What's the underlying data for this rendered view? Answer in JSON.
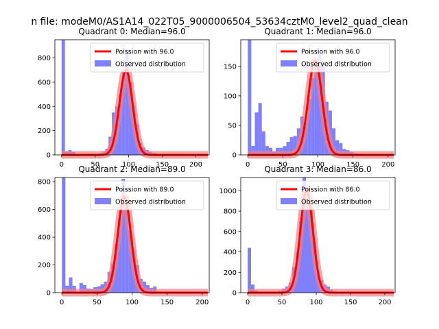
{
  "figure": {
    "suptitle": "n file: modeM0/AS1A14_022T05_9000006504_53634cztM0_level2_quad_clean"
  },
  "colors": {
    "fit_line": "#ff0000",
    "observed_bars": "#8080ff",
    "fit_band": "#f08080"
  },
  "chart_data": [
    {
      "type": "bar",
      "title": "Quadrant 0: Median=96.0",
      "xlim": [
        -10,
        220
      ],
      "ylim": [
        0,
        950
      ],
      "xticks": [
        0,
        50,
        100,
        150,
        200
      ],
      "yticks": [
        0,
        200,
        400,
        600,
        800
      ],
      "bin_width": 5,
      "legend": {
        "placement": "top-right",
        "fit_label": "Poission with 96.0",
        "observed_label": "Observed distribution"
      },
      "fit": {
        "lambda": 96.0,
        "peak": 700
      },
      "bins": [
        {
          "x": 0,
          "y": 950
        },
        {
          "x": 5,
          "y": 30
        },
        {
          "x": 10,
          "y": 40
        },
        {
          "x": 15,
          "y": 25
        },
        {
          "x": 20,
          "y": 8
        },
        {
          "x": 25,
          "y": 5
        },
        {
          "x": 30,
          "y": 4
        },
        {
          "x": 35,
          "y": 4
        },
        {
          "x": 40,
          "y": 5
        },
        {
          "x": 45,
          "y": 5
        },
        {
          "x": 50,
          "y": 6
        },
        {
          "x": 55,
          "y": 15
        },
        {
          "x": 60,
          "y": 25
        },
        {
          "x": 65,
          "y": 50
        },
        {
          "x": 70,
          "y": 150
        },
        {
          "x": 75,
          "y": 350
        },
        {
          "x": 80,
          "y": 400
        },
        {
          "x": 85,
          "y": 500
        },
        {
          "x": 90,
          "y": 700
        },
        {
          "x": 95,
          "y": 850
        },
        {
          "x": 100,
          "y": 600
        },
        {
          "x": 105,
          "y": 400
        },
        {
          "x": 110,
          "y": 250
        },
        {
          "x": 115,
          "y": 100
        },
        {
          "x": 120,
          "y": 60
        },
        {
          "x": 125,
          "y": 40
        },
        {
          "x": 130,
          "y": 25
        },
        {
          "x": 135,
          "y": 15
        },
        {
          "x": 140,
          "y": 10
        },
        {
          "x": 145,
          "y": 6
        },
        {
          "x": 150,
          "y": 4
        },
        {
          "x": 155,
          "y": 3
        },
        {
          "x": 160,
          "y": 2
        },
        {
          "x": 165,
          "y": 2
        },
        {
          "x": 170,
          "y": 1
        },
        {
          "x": 175,
          "y": 1
        },
        {
          "x": 180,
          "y": 1
        },
        {
          "x": 185,
          "y": 1
        },
        {
          "x": 190,
          "y": 1
        },
        {
          "x": 195,
          "y": 1
        },
        {
          "x": 200,
          "y": 1
        },
        {
          "x": 205,
          "y": 1
        },
        {
          "x": 210,
          "y": 1
        }
      ]
    },
    {
      "type": "bar",
      "title": "Quadrant 1: Median=96.0",
      "xlim": [
        -10,
        210
      ],
      "ylim": [
        0,
        195
      ],
      "xticks": [
        0,
        50,
        100,
        150,
        200
      ],
      "yticks": [
        0,
        50,
        100,
        150
      ],
      "bin_width": 5,
      "legend": {
        "placement": "top-right",
        "fit_label": "Poission with 96.0",
        "observed_label": "Observed distribution"
      },
      "fit": {
        "lambda": 96.0,
        "peak": 160
      },
      "bins": [
        {
          "x": 0,
          "y": 195
        },
        {
          "x": 5,
          "y": 15
        },
        {
          "x": 10,
          "y": 72
        },
        {
          "x": 15,
          "y": 88
        },
        {
          "x": 20,
          "y": 40
        },
        {
          "x": 25,
          "y": 15
        },
        {
          "x": 30,
          "y": 12
        },
        {
          "x": 35,
          "y": 6
        },
        {
          "x": 40,
          "y": 12
        },
        {
          "x": 45,
          "y": 12
        },
        {
          "x": 50,
          "y": 15
        },
        {
          "x": 55,
          "y": 22
        },
        {
          "x": 60,
          "y": 30
        },
        {
          "x": 65,
          "y": 32
        },
        {
          "x": 70,
          "y": 45
        },
        {
          "x": 75,
          "y": 65
        },
        {
          "x": 80,
          "y": 55
        },
        {
          "x": 85,
          "y": 95
        },
        {
          "x": 90,
          "y": 130
        },
        {
          "x": 95,
          "y": 150
        },
        {
          "x": 100,
          "y": 170
        },
        {
          "x": 105,
          "y": 155
        },
        {
          "x": 110,
          "y": 90
        },
        {
          "x": 115,
          "y": 75
        },
        {
          "x": 120,
          "y": 45
        },
        {
          "x": 125,
          "y": 25
        },
        {
          "x": 130,
          "y": 20
        },
        {
          "x": 135,
          "y": 10
        },
        {
          "x": 140,
          "y": 8
        },
        {
          "x": 145,
          "y": 5
        },
        {
          "x": 150,
          "y": 3
        },
        {
          "x": 155,
          "y": 2
        },
        {
          "x": 160,
          "y": 2
        },
        {
          "x": 165,
          "y": 1
        },
        {
          "x": 170,
          "y": 1
        },
        {
          "x": 175,
          "y": 1
        },
        {
          "x": 180,
          "y": 1
        },
        {
          "x": 185,
          "y": 1
        },
        {
          "x": 190,
          "y": 1
        },
        {
          "x": 195,
          "y": 1
        }
      ]
    },
    {
      "type": "bar",
      "title": "Quadrant 2: Median=89.0",
      "xlim": [
        -10,
        210
      ],
      "ylim": [
        0,
        830
      ],
      "xticks": [
        0,
        50,
        100,
        150,
        200
      ],
      "yticks": [
        0,
        200,
        400,
        600,
        800
      ],
      "bin_width": 5,
      "legend": {
        "placement": "top-right",
        "fit_label": "Poission with 89.0",
        "observed_label": "Observed distribution"
      },
      "fit": {
        "lambda": 89.0,
        "peak": 690
      },
      "bins": [
        {
          "x": 0,
          "y": 830
        },
        {
          "x": 5,
          "y": 50
        },
        {
          "x": 10,
          "y": 110
        },
        {
          "x": 15,
          "y": 50
        },
        {
          "x": 20,
          "y": 5
        },
        {
          "x": 25,
          "y": 70
        },
        {
          "x": 30,
          "y": 55
        },
        {
          "x": 35,
          "y": 30
        },
        {
          "x": 40,
          "y": 25
        },
        {
          "x": 45,
          "y": 40
        },
        {
          "x": 50,
          "y": 45
        },
        {
          "x": 55,
          "y": 60
        },
        {
          "x": 60,
          "y": 80
        },
        {
          "x": 65,
          "y": 150
        },
        {
          "x": 70,
          "y": 210
        },
        {
          "x": 75,
          "y": 350
        },
        {
          "x": 80,
          "y": 540
        },
        {
          "x": 85,
          "y": 820
        },
        {
          "x": 90,
          "y": 630
        },
        {
          "x": 95,
          "y": 450
        },
        {
          "x": 100,
          "y": 300
        },
        {
          "x": 105,
          "y": 200
        },
        {
          "x": 110,
          "y": 100
        },
        {
          "x": 115,
          "y": 80
        },
        {
          "x": 120,
          "y": 55
        },
        {
          "x": 125,
          "y": 35
        },
        {
          "x": 130,
          "y": 45
        },
        {
          "x": 135,
          "y": 10
        },
        {
          "x": 140,
          "y": 8
        },
        {
          "x": 145,
          "y": 4
        },
        {
          "x": 150,
          "y": 3
        },
        {
          "x": 155,
          "y": 2
        },
        {
          "x": 160,
          "y": 2
        },
        {
          "x": 165,
          "y": 1
        },
        {
          "x": 170,
          "y": 1
        },
        {
          "x": 175,
          "y": 1
        },
        {
          "x": 180,
          "y": 1
        },
        {
          "x": 185,
          "y": 1
        },
        {
          "x": 190,
          "y": 1
        },
        {
          "x": 195,
          "y": 1
        }
      ]
    },
    {
      "type": "bar",
      "title": "Quadrant 3: Median=86.0",
      "xlim": [
        -10,
        215
      ],
      "ylim": [
        0,
        1130
      ],
      "xticks": [
        0,
        50,
        100,
        150,
        200
      ],
      "yticks": [
        0,
        200,
        400,
        600,
        800,
        1000
      ],
      "bin_width": 5,
      "legend": {
        "placement": "top-right",
        "fit_label": "Poission with 86.0",
        "observed_label": "Observed distribution"
      },
      "fit": {
        "lambda": 86.0,
        "peak": 1000
      },
      "bins": [
        {
          "x": 0,
          "y": 440
        },
        {
          "x": 5,
          "y": 80
        },
        {
          "x": 10,
          "y": 20
        },
        {
          "x": 15,
          "y": 10
        },
        {
          "x": 20,
          "y": 5
        },
        {
          "x": 25,
          "y": 10
        },
        {
          "x": 30,
          "y": 5
        },
        {
          "x": 35,
          "y": 5
        },
        {
          "x": 40,
          "y": 10
        },
        {
          "x": 45,
          "y": 20
        },
        {
          "x": 50,
          "y": 40
        },
        {
          "x": 55,
          "y": 60
        },
        {
          "x": 60,
          "y": 100
        },
        {
          "x": 65,
          "y": 250
        },
        {
          "x": 70,
          "y": 400
        },
        {
          "x": 75,
          "y": 700
        },
        {
          "x": 80,
          "y": 1130
        },
        {
          "x": 85,
          "y": 850
        },
        {
          "x": 90,
          "y": 830
        },
        {
          "x": 95,
          "y": 500
        },
        {
          "x": 100,
          "y": 200
        },
        {
          "x": 105,
          "y": 120
        },
        {
          "x": 110,
          "y": 80
        },
        {
          "x": 115,
          "y": 60
        },
        {
          "x": 120,
          "y": 30
        },
        {
          "x": 125,
          "y": 15
        },
        {
          "x": 130,
          "y": 10
        },
        {
          "x": 135,
          "y": 5
        },
        {
          "x": 140,
          "y": 3
        },
        {
          "x": 145,
          "y": 3
        },
        {
          "x": 150,
          "y": 2
        },
        {
          "x": 155,
          "y": 2
        },
        {
          "x": 160,
          "y": 1
        },
        {
          "x": 165,
          "y": 1
        },
        {
          "x": 170,
          "y": 1
        },
        {
          "x": 175,
          "y": 1
        },
        {
          "x": 180,
          "y": 1
        },
        {
          "x": 185,
          "y": 1
        },
        {
          "x": 190,
          "y": 1
        },
        {
          "x": 195,
          "y": 1
        },
        {
          "x": 200,
          "y": 1
        }
      ]
    }
  ]
}
